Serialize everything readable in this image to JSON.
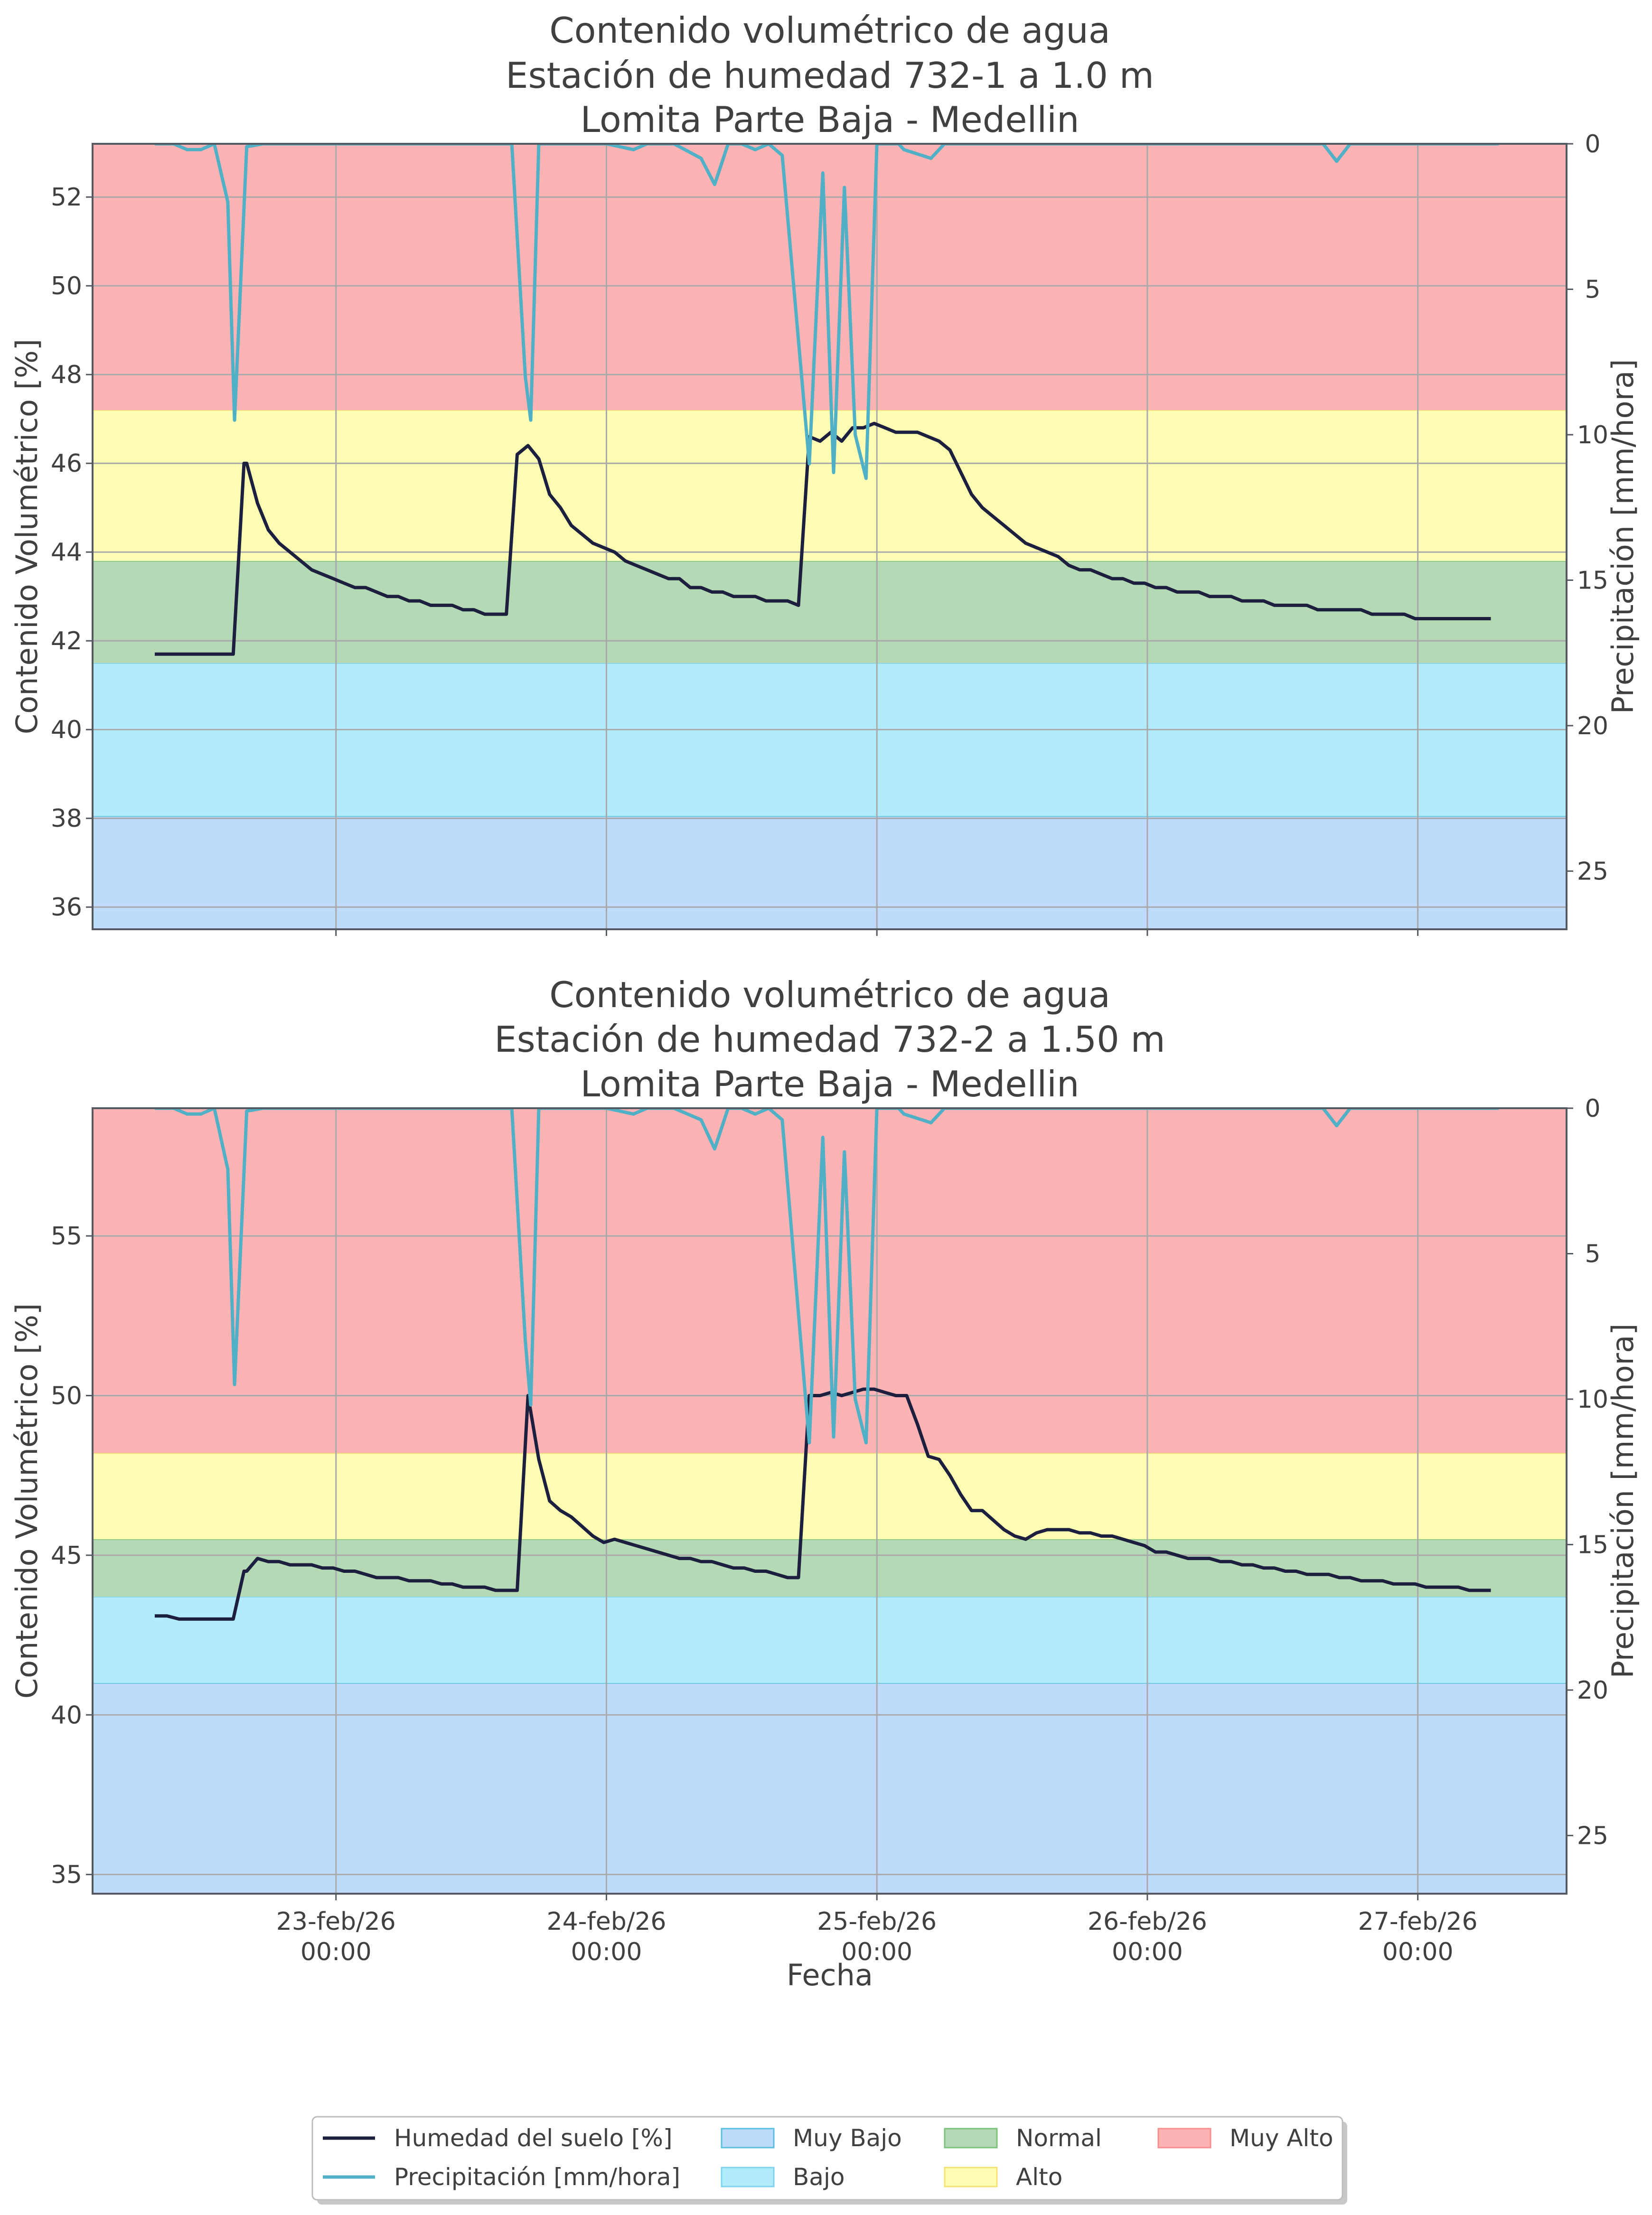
{
  "chart_data": [
    {
      "type": "line",
      "title_lines": [
        "Contenido volumétrico de agua",
        "Estación de humedad 732-1 a 1.0 m",
        "Lomita Parte Baja - Medellin"
      ],
      "ylabel": "Contenido Volumétrico [%]",
      "ylabel_right": "Precipitación [mm/hora]",
      "ylim": [
        35.5,
        53.2
      ],
      "yticks": [
        36,
        38,
        40,
        42,
        44,
        46,
        48,
        50,
        52
      ],
      "y2lim": [
        0,
        27
      ],
      "y2ticks": [
        0,
        5,
        10,
        15,
        20,
        25
      ],
      "xlim": [
        -0.9,
        4.55
      ],
      "xticks": [
        0,
        1,
        2,
        3,
        4
      ],
      "xtick_labels": [],
      "grid": true,
      "bands": [
        {
          "name": "Muy Bajo",
          "from": 35.5,
          "to": 38.05,
          "color": "#bedbfc",
          "edge": "#5bc0de"
        },
        {
          "name": "Bajo",
          "from": 38.05,
          "to": 41.5,
          "color": "#b2ebfb",
          "edge": "#7fd3ee"
        },
        {
          "name": "Normal",
          "from": 41.5,
          "to": 43.8,
          "color": "#b4d9b4",
          "edge": "#7cc17c"
        },
        {
          "name": "Alto",
          "from": 43.8,
          "to": 47.2,
          "color": "#fefdb4",
          "edge": "#f3e373"
        },
        {
          "name": "Muy Alto",
          "from": 47.2,
          "to": 53.2,
          "color": "#fdb2b4",
          "edge": "#f88f8f"
        }
      ],
      "series": [
        {
          "name": "Humedad del suelo [%]",
          "axis": "left",
          "x": [
            -0.67,
            -0.625,
            -0.58,
            -0.54,
            -0.5,
            -0.46,
            -0.42,
            -0.38,
            -0.34,
            -0.33,
            -0.29,
            -0.25,
            -0.21,
            -0.17,
            -0.13,
            -0.09,
            -0.05,
            -0.01,
            0.03,
            0.07,
            0.11,
            0.15,
            0.19,
            0.23,
            0.27,
            0.31,
            0.35,
            0.39,
            0.43,
            0.47,
            0.51,
            0.55,
            0.59,
            0.63,
            0.67,
            0.71,
            0.75,
            0.79,
            0.83,
            0.87,
            0.91,
            0.95,
            0.99,
            1.03,
            1.07,
            1.11,
            1.15,
            1.19,
            1.23,
            1.27,
            1.31,
            1.35,
            1.39,
            1.43,
            1.47,
            1.51,
            1.55,
            1.59,
            1.63,
            1.67,
            1.71,
            1.75,
            1.79,
            1.83,
            1.87,
            1.91,
            1.95,
            1.99,
            2.03,
            2.07,
            2.11,
            2.15,
            2.19,
            2.23,
            2.27,
            2.31,
            2.35,
            2.39,
            2.43,
            2.47,
            2.51,
            2.55,
            2.59,
            2.63,
            2.67,
            2.71,
            2.75,
            2.79,
            2.83,
            2.87,
            2.91,
            2.95,
            2.99,
            3.03,
            3.07,
            3.11,
            3.15,
            3.19,
            3.23,
            3.27,
            3.31,
            3.35,
            3.39,
            3.43,
            3.47,
            3.51,
            3.55,
            3.59,
            3.63,
            3.67,
            3.71,
            3.75,
            3.79,
            3.83,
            3.87,
            3.91,
            3.95,
            3.99,
            4.03,
            4.07,
            4.11,
            4.15,
            4.19,
            4.23,
            4.27
          ],
          "y": [
            41.7,
            41.7,
            41.7,
            41.7,
            41.7,
            41.7,
            41.7,
            41.7,
            46.0,
            46.0,
            45.1,
            44.5,
            44.2,
            44.0,
            43.8,
            43.6,
            43.5,
            43.4,
            43.3,
            43.2,
            43.2,
            43.1,
            43.0,
            43.0,
            42.9,
            42.9,
            42.8,
            42.8,
            42.8,
            42.7,
            42.7,
            42.6,
            42.6,
            42.6,
            46.2,
            46.4,
            46.1,
            45.3,
            45.0,
            44.6,
            44.4,
            44.2,
            44.1,
            44.0,
            43.8,
            43.7,
            43.6,
            43.5,
            43.4,
            43.4,
            43.2,
            43.2,
            43.1,
            43.1,
            43.0,
            43.0,
            43.0,
            42.9,
            42.9,
            42.9,
            42.8,
            46.6,
            46.5,
            46.7,
            46.5,
            46.8,
            46.8,
            46.9,
            46.8,
            46.7,
            46.7,
            46.7,
            46.6,
            46.5,
            46.3,
            45.8,
            45.3,
            45.0,
            44.8,
            44.6,
            44.4,
            44.2,
            44.1,
            44.0,
            43.9,
            43.7,
            43.6,
            43.6,
            43.5,
            43.4,
            43.4,
            43.3,
            43.3,
            43.2,
            43.2,
            43.1,
            43.1,
            43.1,
            43.0,
            43.0,
            43.0,
            42.9,
            42.9,
            42.9,
            42.8,
            42.8,
            42.8,
            42.8,
            42.7,
            42.7,
            42.7,
            42.7,
            42.7,
            42.6,
            42.6,
            42.6,
            42.6,
            42.5,
            42.5,
            42.5,
            42.5,
            42.5,
            42.5,
            42.5,
            42.5
          ],
          "color": "#1c1f3e"
        },
        {
          "name": "Precipitación [mm/hora]",
          "axis": "right",
          "x": [
            -0.67,
            -0.6,
            -0.55,
            -0.5,
            -0.45,
            -0.4,
            -0.375,
            -0.33,
            -0.27,
            -0.2,
            0.0,
            0.5,
            0.65,
            0.7,
            0.72,
            0.75,
            0.8,
            1.0,
            1.1,
            1.15,
            1.2,
            1.25,
            1.35,
            1.4,
            1.45,
            1.5,
            1.55,
            1.6,
            1.65,
            1.75,
            1.8,
            1.84,
            1.88,
            1.92,
            1.96,
            2.0,
            2.04,
            2.08,
            2.1,
            2.2,
            2.25,
            2.3,
            2.4,
            3.0,
            3.5,
            3.65,
            3.7,
            3.75,
            4.3
          ],
          "y": [
            0,
            0,
            0.2,
            0.2,
            0,
            2.0,
            9.5,
            0.1,
            0,
            0,
            0,
            0,
            0,
            8.0,
            9.5,
            0,
            0,
            0,
            0.2,
            0,
            0,
            0,
            0.5,
            1.4,
            0,
            0,
            0.2,
            0,
            0.4,
            11.0,
            1.0,
            11.3,
            1.5,
            10.0,
            11.5,
            0.0,
            0.0,
            0.0,
            0.2,
            0.5,
            0,
            0,
            0,
            0,
            0,
            0,
            0.6,
            0,
            0
          ],
          "color": "#4fb0c6"
        }
      ]
    },
    {
      "type": "line",
      "title_lines": [
        "Contenido volumétrico de agua",
        "Estación de humedad 732-2 a 1.50 m",
        "Lomita Parte Baja - Medellin"
      ],
      "ylabel": "Contenido Volumétrico [%]",
      "ylabel_right": "Precipitación [mm/hora]",
      "ylim": [
        34.4,
        59.0
      ],
      "yticks": [
        35,
        40,
        45,
        50,
        55
      ],
      "y2lim": [
        0,
        27
      ],
      "y2ticks": [
        0,
        5,
        10,
        15,
        20,
        25
      ],
      "xlim": [
        -0.9,
        4.55
      ],
      "xticks": [
        0,
        1,
        2,
        3,
        4
      ],
      "xtick_labels": [
        [
          "23-feb/26",
          "00:00"
        ],
        [
          "24-feb/26",
          "00:00"
        ],
        [
          "25-feb/26",
          "00:00"
        ],
        [
          "26-feb/26",
          "00:00"
        ],
        [
          "27-feb/26",
          "00:00"
        ]
      ],
      "xlabel": "Fecha",
      "grid": true,
      "bands": [
        {
          "name": "Muy Bajo",
          "from": 34.4,
          "to": 41.0,
          "color": "#bedbfc",
          "edge": "#5bc0de"
        },
        {
          "name": "Bajo",
          "from": 41.0,
          "to": 43.7,
          "color": "#b2ebfb",
          "edge": "#7fd3ee"
        },
        {
          "name": "Normal",
          "from": 43.7,
          "to": 45.5,
          "color": "#b4d9b4",
          "edge": "#7cc17c"
        },
        {
          "name": "Alto",
          "from": 45.5,
          "to": 48.2,
          "color": "#fefdb4",
          "edge": "#f3e373"
        },
        {
          "name": "Muy Alto",
          "from": 48.2,
          "to": 59.0,
          "color": "#fdb2b4",
          "edge": "#f88f8f"
        }
      ],
      "series": [
        {
          "name": "Humedad del suelo [%]",
          "axis": "left",
          "x": [
            -0.67,
            -0.625,
            -0.58,
            -0.54,
            -0.5,
            -0.46,
            -0.42,
            -0.38,
            -0.34,
            -0.33,
            -0.29,
            -0.25,
            -0.21,
            -0.17,
            -0.13,
            -0.09,
            -0.05,
            -0.01,
            0.03,
            0.07,
            0.11,
            0.15,
            0.19,
            0.23,
            0.27,
            0.31,
            0.35,
            0.39,
            0.43,
            0.47,
            0.51,
            0.55,
            0.59,
            0.63,
            0.67,
            0.71,
            0.75,
            0.79,
            0.83,
            0.87,
            0.91,
            0.95,
            0.99,
            1.03,
            1.07,
            1.11,
            1.15,
            1.19,
            1.23,
            1.27,
            1.31,
            1.35,
            1.39,
            1.43,
            1.47,
            1.51,
            1.55,
            1.59,
            1.63,
            1.67,
            1.71,
            1.75,
            1.79,
            1.83,
            1.87,
            1.91,
            1.95,
            1.99,
            2.03,
            2.07,
            2.11,
            2.15,
            2.19,
            2.23,
            2.27,
            2.31,
            2.35,
            2.39,
            2.43,
            2.47,
            2.51,
            2.55,
            2.59,
            2.63,
            2.67,
            2.71,
            2.75,
            2.79,
            2.83,
            2.87,
            2.91,
            2.95,
            2.99,
            3.03,
            3.07,
            3.11,
            3.15,
            3.19,
            3.23,
            3.27,
            3.31,
            3.35,
            3.39,
            3.43,
            3.47,
            3.51,
            3.55,
            3.59,
            3.63,
            3.67,
            3.71,
            3.75,
            3.79,
            3.83,
            3.87,
            3.91,
            3.95,
            3.99,
            4.03,
            4.07,
            4.11,
            4.15,
            4.19,
            4.23,
            4.27
          ],
          "y": [
            43.1,
            43.1,
            43.0,
            43.0,
            43.0,
            43.0,
            43.0,
            43.0,
            44.5,
            44.5,
            44.9,
            44.8,
            44.8,
            44.7,
            44.7,
            44.7,
            44.6,
            44.6,
            44.5,
            44.5,
            44.4,
            44.3,
            44.3,
            44.3,
            44.2,
            44.2,
            44.2,
            44.1,
            44.1,
            44.0,
            44.0,
            44.0,
            43.9,
            43.9,
            43.9,
            50.0,
            48.0,
            46.7,
            46.4,
            46.2,
            45.9,
            45.6,
            45.4,
            45.5,
            45.4,
            45.3,
            45.2,
            45.1,
            45.0,
            44.9,
            44.9,
            44.8,
            44.8,
            44.7,
            44.6,
            44.6,
            44.5,
            44.5,
            44.4,
            44.3,
            44.3,
            50.0,
            50.0,
            50.1,
            50.0,
            50.1,
            50.2,
            50.2,
            50.1,
            50.0,
            50.0,
            49.1,
            48.1,
            48.0,
            47.5,
            46.9,
            46.4,
            46.4,
            46.1,
            45.8,
            45.6,
            45.5,
            45.7,
            45.8,
            45.8,
            45.8,
            45.7,
            45.7,
            45.6,
            45.6,
            45.5,
            45.4,
            45.3,
            45.1,
            45.1,
            45.0,
            44.9,
            44.9,
            44.9,
            44.8,
            44.8,
            44.7,
            44.7,
            44.6,
            44.6,
            44.5,
            44.5,
            44.4,
            44.4,
            44.4,
            44.3,
            44.3,
            44.2,
            44.2,
            44.2,
            44.1,
            44.1,
            44.1,
            44.0,
            44.0,
            44.0,
            44.0,
            43.9,
            43.9,
            43.9
          ],
          "color": "#1c1f3e"
        },
        {
          "name": "Precipitación [mm/hora]",
          "axis": "right",
          "x": [
            -0.67,
            -0.6,
            -0.55,
            -0.5,
            -0.45,
            -0.4,
            -0.375,
            -0.33,
            -0.27,
            -0.2,
            0.0,
            0.5,
            0.65,
            0.7,
            0.72,
            0.75,
            0.8,
            1.0,
            1.1,
            1.15,
            1.2,
            1.25,
            1.35,
            1.4,
            1.45,
            1.5,
            1.55,
            1.6,
            1.65,
            1.75,
            1.8,
            1.84,
            1.88,
            1.92,
            1.96,
            2.0,
            2.04,
            2.08,
            2.1,
            2.2,
            2.25,
            2.3,
            2.4,
            3.0,
            3.5,
            3.65,
            3.7,
            3.75,
            4.3
          ],
          "y": [
            0,
            0,
            0.2,
            0.2,
            0,
            2.1,
            9.5,
            0.1,
            0,
            0,
            0,
            0,
            0,
            8.0,
            10.2,
            0,
            0,
            0,
            0.2,
            0,
            0,
            0,
            0.4,
            1.4,
            0,
            0,
            0.2,
            0,
            0.4,
            11.5,
            1.0,
            11.3,
            1.5,
            10.0,
            11.5,
            0.0,
            0.0,
            0.0,
            0.2,
            0.5,
            0,
            0,
            0,
            0,
            0,
            0,
            0.6,
            0,
            0
          ],
          "color": "#4fb0c6"
        }
      ]
    }
  ],
  "legend": {
    "placement": "bottom-center",
    "items": [
      {
        "label": "Humedad del suelo [%]",
        "kind": "line",
        "color": "#1c1f3e"
      },
      {
        "label": "Precipitación [mm/hora]",
        "kind": "line",
        "color": "#4fb0c6"
      },
      {
        "label": "Muy Bajo",
        "kind": "patch",
        "color": "#bedbfc",
        "edge": "#5bc0de"
      },
      {
        "label": "Bajo",
        "kind": "patch",
        "color": "#b2ebfb",
        "edge": "#7fd3ee"
      },
      {
        "label": "Normal",
        "kind": "patch",
        "color": "#b4d9b4",
        "edge": "#7cc17c"
      },
      {
        "label": "Alto",
        "kind": "patch",
        "color": "#fefdb4",
        "edge": "#f3e373"
      },
      {
        "label": "Muy Alto",
        "kind": "patch",
        "color": "#fdb2b4",
        "edge": "#f88f8f"
      }
    ]
  }
}
